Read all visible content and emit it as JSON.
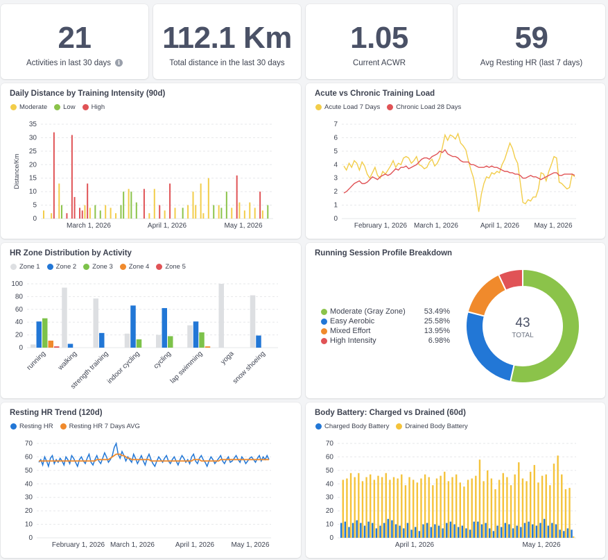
{
  "kpis": [
    {
      "value": "21",
      "label": "Activities in last 30 days"
    },
    {
      "value": "112.1 Km",
      "label": "Total distance in the last 30 days"
    },
    {
      "value": "1.05",
      "label": "Current ACWR"
    },
    {
      "value": "59",
      "label": "Avg Resting HR (last 7 days)"
    }
  ],
  "icons": {
    "info": "info-icon"
  },
  "colors": {
    "moderate": "#f2cd4a",
    "low": "#8bc34a",
    "high": "#e05356",
    "zone1": "#dddfe2",
    "zone2": "#2277d6",
    "zone3": "#7dc24a",
    "zone4": "#f08a2c",
    "zone5": "#e05356",
    "blue": "#2277d6",
    "orange": "#f08a2c",
    "yellow": "#f4c33b"
  },
  "daily": {
    "title": "Daily Distance by Training Intensity (90d)",
    "legend": [
      "Moderate",
      "Low",
      "High"
    ],
    "chart_data": {
      "type": "bar",
      "ylabel": "Distance/Km",
      "ylim": [
        0,
        35
      ],
      "yticks": [
        0,
        5,
        10,
        15,
        20,
        25,
        30,
        35
      ],
      "xticks": [
        "March 1, 2026",
        "April 1, 2026",
        "May 1, 2026"
      ],
      "bars": [
        {
          "day": 1,
          "value": 3,
          "series": "Moderate"
        },
        {
          "day": 4,
          "value": 2,
          "series": "Moderate"
        },
        {
          "day": 5,
          "value": 32,
          "series": "High"
        },
        {
          "day": 7,
          "value": 13,
          "series": "Moderate"
        },
        {
          "day": 8,
          "value": 5,
          "series": "Low"
        },
        {
          "day": 10,
          "value": 2,
          "series": "High"
        },
        {
          "day": 12,
          "value": 31,
          "series": "High"
        },
        {
          "day": 13,
          "value": 8,
          "series": "High"
        },
        {
          "day": 15,
          "value": 4,
          "series": "High"
        },
        {
          "day": 16,
          "value": 3,
          "series": "High"
        },
        {
          "day": 17,
          "value": 5,
          "series": "Moderate"
        },
        {
          "day": 18,
          "value": 13,
          "series": "High"
        },
        {
          "day": 19,
          "value": 4,
          "series": "Moderate"
        },
        {
          "day": 21,
          "value": 5,
          "series": "Low"
        },
        {
          "day": 23,
          "value": 3,
          "series": "Low"
        },
        {
          "day": 25,
          "value": 5,
          "series": "Moderate"
        },
        {
          "day": 27,
          "value": 4,
          "series": "Moderate"
        },
        {
          "day": 29,
          "value": 2,
          "series": "Moderate"
        },
        {
          "day": 31,
          "value": 5,
          "series": "Low"
        },
        {
          "day": 32,
          "value": 10,
          "series": "Low"
        },
        {
          "day": 34,
          "value": 11,
          "series": "Moderate"
        },
        {
          "day": 35,
          "value": 10,
          "series": "Low"
        },
        {
          "day": 37,
          "value": 6,
          "series": "Low"
        },
        {
          "day": 40,
          "value": 11,
          "series": "High"
        },
        {
          "day": 42,
          "value": 2,
          "series": "Moderate"
        },
        {
          "day": 44,
          "value": 11,
          "series": "Moderate"
        },
        {
          "day": 46,
          "value": 5,
          "series": "High"
        },
        {
          "day": 48,
          "value": 3,
          "series": "Moderate"
        },
        {
          "day": 50,
          "value": 13,
          "series": "High"
        },
        {
          "day": 52,
          "value": 4,
          "series": "Moderate"
        },
        {
          "day": 55,
          "value": 4,
          "series": "Low"
        },
        {
          "day": 57,
          "value": 5,
          "series": "Moderate"
        },
        {
          "day": 59,
          "value": 10,
          "series": "Moderate"
        },
        {
          "day": 60,
          "value": 5,
          "series": "Moderate"
        },
        {
          "day": 62,
          "value": 13,
          "series": "Moderate"
        },
        {
          "day": 63,
          "value": 2,
          "series": "Moderate"
        },
        {
          "day": 65,
          "value": 15,
          "series": "Moderate"
        },
        {
          "day": 67,
          "value": 5,
          "series": "Low"
        },
        {
          "day": 69,
          "value": 5,
          "series": "Moderate"
        },
        {
          "day": 70,
          "value": 4,
          "series": "Low"
        },
        {
          "day": 72,
          "value": 10,
          "series": "Low"
        },
        {
          "day": 74,
          "value": 4,
          "series": "Moderate"
        },
        {
          "day": 76,
          "value": 16,
          "series": "High"
        },
        {
          "day": 77,
          "value": 6,
          "series": "Moderate"
        },
        {
          "day": 79,
          "value": 3,
          "series": "Moderate"
        },
        {
          "day": 81,
          "value": 6,
          "series": "Moderate"
        },
        {
          "day": 83,
          "value": 4,
          "series": "Moderate"
        },
        {
          "day": 85,
          "value": 10,
          "series": "High"
        },
        {
          "day": 86,
          "value": 3,
          "series": "Moderate"
        },
        {
          "day": 88,
          "value": 5,
          "series": "Low"
        }
      ]
    }
  },
  "acwr": {
    "title": "Acute vs Chronic Training Load",
    "legend": [
      "Acute Load 7 Days",
      "Chronic Load 28 Days"
    ],
    "chart_data": {
      "type": "line",
      "ylim": [
        0,
        7
      ],
      "yticks": [
        0,
        1,
        2,
        3,
        4,
        5,
        6,
        7
      ],
      "xticks": [
        "February 1, 2026",
        "March 1, 2026",
        "April 1, 2026",
        "May 1, 2026"
      ],
      "series": [
        {
          "name": "Acute Load 7 Days",
          "values": [
            3.9,
            3.6,
            4.1,
            3.8,
            4.3,
            4.1,
            3.6,
            4.2,
            3.9,
            3.3,
            3.0,
            3.4,
            3.8,
            3.2,
            3.0,
            3.5,
            3.3,
            3.6,
            3.9,
            4.3,
            3.8,
            4.1,
            4.0,
            4.5,
            4.6,
            4.5,
            4.1,
            4.3,
            4.6,
            4.0,
            3.9,
            3.7,
            3.8,
            4.2,
            4.4,
            3.9,
            4.1,
            4.5,
            5.3,
            6.2,
            5.8,
            6.2,
            6.1,
            5.9,
            6.3,
            5.6,
            5.4,
            5.1,
            4.3,
            3.6,
            3.0,
            1.9,
            0.5,
            1.8,
            2.6,
            3.1,
            3.0,
            3.4,
            3.3,
            3.5,
            3.4,
            4.0,
            4.4,
            5.0,
            5.6,
            5.2,
            4.5,
            4.1,
            2.7,
            1.2,
            1.1,
            1.4,
            1.3,
            1.6,
            1.6,
            2.2,
            3.4,
            3.3,
            2.8,
            3.5,
            4.0,
            4.6,
            4.5,
            2.7,
            2.6,
            2.4,
            2.2,
            2.3,
            3.3,
            3.1
          ]
        },
        {
          "name": "Chronic Load 28 Days",
          "values": [
            1.9,
            2.0,
            2.2,
            2.4,
            2.6,
            2.7,
            2.8,
            2.6,
            2.6,
            2.7,
            2.9,
            3.1,
            3.0,
            2.9,
            3.1,
            3.2,
            3.3,
            3.2,
            3.3,
            3.5,
            3.7,
            3.6,
            3.8,
            3.8,
            3.9,
            3.7,
            3.8,
            3.9,
            4.0,
            4.2,
            4.4,
            4.5,
            4.5,
            4.4,
            4.6,
            4.7,
            4.8,
            5.0,
            4.9,
            5.1,
            4.8,
            4.7,
            4.6,
            4.6,
            4.5,
            4.3,
            4.2,
            4.2,
            4.2,
            4.0,
            4.0,
            3.9,
            3.8,
            3.8,
            3.8,
            3.9,
            3.8,
            3.9,
            3.8,
            3.8,
            3.7,
            3.6,
            3.5,
            3.5,
            3.4,
            3.4,
            3.3,
            3.3,
            3.2,
            3.0,
            3.0,
            3.1,
            3.2,
            3.1,
            3.1,
            3.0,
            2.9,
            3.0,
            3.1,
            3.2,
            3.3,
            3.4,
            3.4,
            3.2,
            3.2,
            3.3,
            3.3,
            3.3,
            3.3,
            3.2
          ]
        }
      ]
    }
  },
  "hrzone": {
    "title": "HR Zone Distribution by Activity",
    "legend": [
      "Zone 1",
      "Zone 2",
      "Zone 3",
      "Zone 4",
      "Zone 5"
    ],
    "chart_data": {
      "type": "bar",
      "ylim": [
        0,
        100
      ],
      "yticks": [
        0,
        20,
        40,
        60,
        80,
        100
      ],
      "categories": [
        "running",
        "walking",
        "strength training",
        "indoor cycling",
        "cycling",
        "lap swimming",
        "yoga",
        "snow shoeing"
      ],
      "series": [
        {
          "name": "Zone 1",
          "values": [
            5,
            94,
            77,
            22,
            20,
            35,
            100,
            82
          ]
        },
        {
          "name": "Zone 2",
          "values": [
            41,
            6,
            23,
            66,
            62,
            41,
            0,
            19
          ]
        },
        {
          "name": "Zone 3",
          "values": [
            46,
            0,
            0,
            13,
            18,
            24,
            0,
            0
          ]
        },
        {
          "name": "Zone 4",
          "values": [
            11,
            0,
            0,
            0,
            0,
            2,
            0,
            0
          ]
        },
        {
          "name": "Zone 5",
          "values": [
            2,
            0,
            0,
            0,
            0,
            0,
            0,
            0
          ]
        }
      ]
    }
  },
  "profile": {
    "title": "Running Session Profile Breakdown",
    "center_value": "43",
    "center_label": "TOTAL",
    "chart_data": {
      "type": "pie",
      "donut": true,
      "slices": [
        {
          "label": "Moderate (Gray Zone)",
          "value": 53.49,
          "pct": "53.49%",
          "color": "#8bc34a"
        },
        {
          "label": "Easy Aerobic",
          "value": 25.58,
          "pct": "25.58%",
          "color": "#2277d6"
        },
        {
          "label": "Mixed Effort",
          "value": 13.95,
          "pct": "13.95%",
          "color": "#f08a2c"
        },
        {
          "label": "High Intensity",
          "value": 6.98,
          "pct": "6.98%",
          "color": "#e05356"
        }
      ]
    }
  },
  "resting": {
    "title": "Resting HR Trend (120d)",
    "legend": [
      "Resting HR",
      "Resting HR 7 Days AVG"
    ],
    "chart_data": {
      "type": "line",
      "ylim": [
        0,
        70
      ],
      "yticks": [
        0,
        10,
        20,
        30,
        40,
        50,
        60,
        70
      ],
      "xticks": [
        "February 1, 2026",
        "March 1, 2026",
        "April 1, 2026",
        "May 1, 2026"
      ],
      "series": [
        {
          "name": "Resting HR",
          "values": [
            56,
            58,
            54,
            60,
            57,
            53,
            59,
            61,
            55,
            58,
            56,
            59,
            57,
            54,
            60,
            58,
            55,
            61,
            59,
            56,
            53,
            58,
            60,
            57,
            55,
            59,
            62,
            56,
            54,
            58,
            61,
            57,
            55,
            59,
            63,
            60,
            56,
            58,
            61,
            67,
            70,
            62,
            59,
            64,
            61,
            57,
            60,
            58,
            56,
            62,
            59,
            55,
            58,
            61,
            57,
            54,
            59,
            62,
            58,
            55,
            53,
            57,
            60,
            58,
            56,
            59,
            61,
            57,
            55,
            58,
            60,
            57,
            54,
            58,
            61,
            59,
            56,
            58,
            55,
            60,
            62,
            57,
            55,
            59,
            61,
            58,
            56,
            53,
            57,
            60,
            58,
            55,
            57,
            59,
            61,
            57,
            55,
            58,
            60,
            56,
            57,
            59,
            61,
            58,
            56,
            60,
            58,
            55,
            57,
            59,
            60,
            58,
            56,
            59,
            61,
            57,
            60,
            58,
            61,
            58
          ]
        },
        {
          "name": "Resting HR 7 Days AVG",
          "values": [
            57,
            57,
            57,
            57,
            57,
            57,
            57,
            57,
            57,
            57,
            57,
            57,
            57,
            57,
            57,
            57,
            57,
            57,
            57,
            57,
            57,
            57,
            57,
            57,
            57,
            57,
            57,
            57,
            57,
            57,
            58,
            58,
            58,
            58,
            58,
            58,
            58,
            59,
            60,
            61,
            62,
            62,
            62,
            61,
            61,
            60,
            59,
            59,
            58,
            58,
            58,
            58,
            58,
            58,
            58,
            58,
            58,
            58,
            57,
            57,
            57,
            57,
            57,
            57,
            57,
            57,
            57,
            57,
            57,
            57,
            57,
            57,
            57,
            57,
            57,
            57,
            57,
            57,
            57,
            57,
            58,
            58,
            58,
            58,
            57,
            57,
            57,
            57,
            57,
            57,
            57,
            57,
            57,
            57,
            58,
            58,
            58,
            58,
            58,
            58,
            58,
            58,
            58,
            58,
            58,
            58,
            58,
            58,
            58,
            58,
            58,
            58,
            58,
            58,
            58,
            58,
            58,
            58,
            58,
            58
          ]
        }
      ]
    }
  },
  "battery": {
    "title": "Body Battery: Charged vs Drained (60d)",
    "legend": [
      "Charged Body Battery",
      "Drained Body Battery"
    ],
    "chart_data": {
      "type": "bar",
      "ylim": [
        0,
        70
      ],
      "yticks": [
        0,
        10,
        20,
        30,
        40,
        50,
        60,
        70
      ],
      "xticks": [
        "April 1, 2026",
        "May 1, 2026"
      ],
      "series": [
        {
          "name": "Charged Body Battery",
          "values": [
            11,
            12,
            8,
            11,
            13,
            11,
            9,
            12,
            11,
            7,
            9,
            11,
            14,
            13,
            10,
            9,
            7,
            11,
            6,
            8,
            5,
            10,
            11,
            8,
            10,
            9,
            7,
            11,
            12,
            10,
            8,
            9,
            7,
            6,
            12,
            12,
            10,
            11,
            7,
            5,
            9,
            8,
            11,
            10,
            7,
            9,
            8,
            11,
            12,
            10,
            9,
            11,
            14,
            9,
            11,
            10,
            6,
            5,
            7,
            6
          ]
        },
        {
          "name": "Drained Body Battery",
          "values": [
            43,
            44,
            48,
            45,
            48,
            42,
            45,
            47,
            43,
            46,
            45,
            48,
            43,
            45,
            44,
            47,
            39,
            45,
            43,
            41,
            44,
            47,
            45,
            39,
            44,
            46,
            49,
            42,
            45,
            47,
            41,
            38,
            43,
            44,
            46,
            58,
            42,
            50,
            44,
            36,
            43,
            48,
            45,
            39,
            47,
            56,
            44,
            42,
            49,
            54,
            41,
            46,
            47,
            39,
            55,
            61,
            47,
            36,
            37,
            1
          ]
        }
      ]
    }
  }
}
